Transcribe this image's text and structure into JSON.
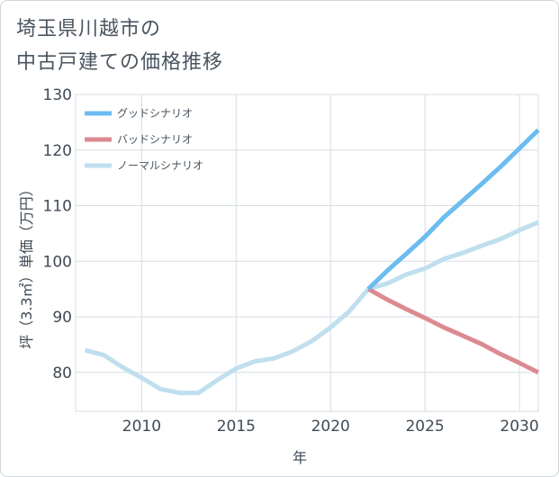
{
  "chart_data": {
    "type": "line",
    "title_lines": [
      "埼玉県川越市の",
      "中古戸建ての価格推移"
    ],
    "xlabel": "年",
    "ylabel": "坪（3.3㎡）単価（万円）",
    "xlim": [
      2006.5,
      2031
    ],
    "ylim": [
      73,
      130
    ],
    "x_ticks": [
      2010,
      2015,
      2020,
      2025,
      2030
    ],
    "y_ticks": [
      80,
      90,
      100,
      110,
      120,
      130
    ],
    "grid": true,
    "legend_position": "top-left",
    "series": [
      {
        "name": "グッドシナリオ",
        "color": "#6bbcf0",
        "x": [
          2022,
          2023,
          2024,
          2025,
          2026,
          2027,
          2028,
          2029,
          2030,
          2031
        ],
        "y": [
          95.0,
          98.3,
          101.3,
          104.4,
          107.9,
          110.9,
          113.9,
          117.0,
          120.3,
          123.6
        ]
      },
      {
        "name": "バッドシナリオ",
        "color": "#dc8a92",
        "x": [
          2022,
          2023,
          2024,
          2025,
          2026,
          2027,
          2028,
          2029,
          2030,
          2031
        ],
        "y": [
          95.0,
          93.1,
          91.4,
          89.8,
          88.1,
          86.6,
          85.1,
          83.3,
          81.7,
          80.0
        ]
      },
      {
        "name": "ノーマルシナリオ",
        "color": "#bfdfee",
        "x": [
          2007,
          2008,
          2009,
          2010,
          2011,
          2012,
          2013,
          2014,
          2015,
          2016,
          2017,
          2018,
          2019,
          2020,
          2021,
          2022,
          2023,
          2024,
          2025,
          2026,
          2027,
          2028,
          2029,
          2030,
          2031
        ],
        "y": [
          84.0,
          83.1,
          80.9,
          79.0,
          77.0,
          76.3,
          76.3,
          78.6,
          80.7,
          82.0,
          82.5,
          83.8,
          85.6,
          88.1,
          91.0,
          95.0,
          96.0,
          97.6,
          98.7,
          100.4,
          101.5,
          102.8,
          104.0,
          105.6,
          107.0
        ]
      }
    ]
  }
}
